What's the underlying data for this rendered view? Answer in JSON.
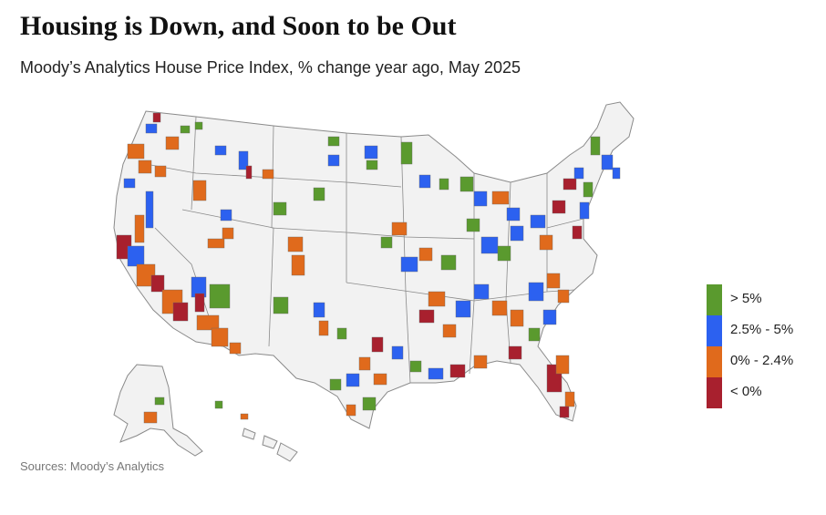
{
  "title": "Housing is Down, and Soon to be Out",
  "subtitle": "Moody’s Analytics House Price Index, % change year ago, May 2025",
  "source": "Sources: Moody’s Analytics",
  "map_data": {
    "type": "choropleth",
    "region": "United States metro areas",
    "base_color": "#f2f2f2",
    "border_color": "#8a8a8a",
    "legend": [
      {
        "label": "> 5%",
        "color": "#5a9a2e"
      },
      {
        "label": "2.5% - 5%",
        "color": "#2c61f0"
      },
      {
        "label": "0% - 2.4%",
        "color": "#e06a1c"
      },
      {
        "label": "< 0%",
        "color": "#a8202e"
      }
    ]
  }
}
